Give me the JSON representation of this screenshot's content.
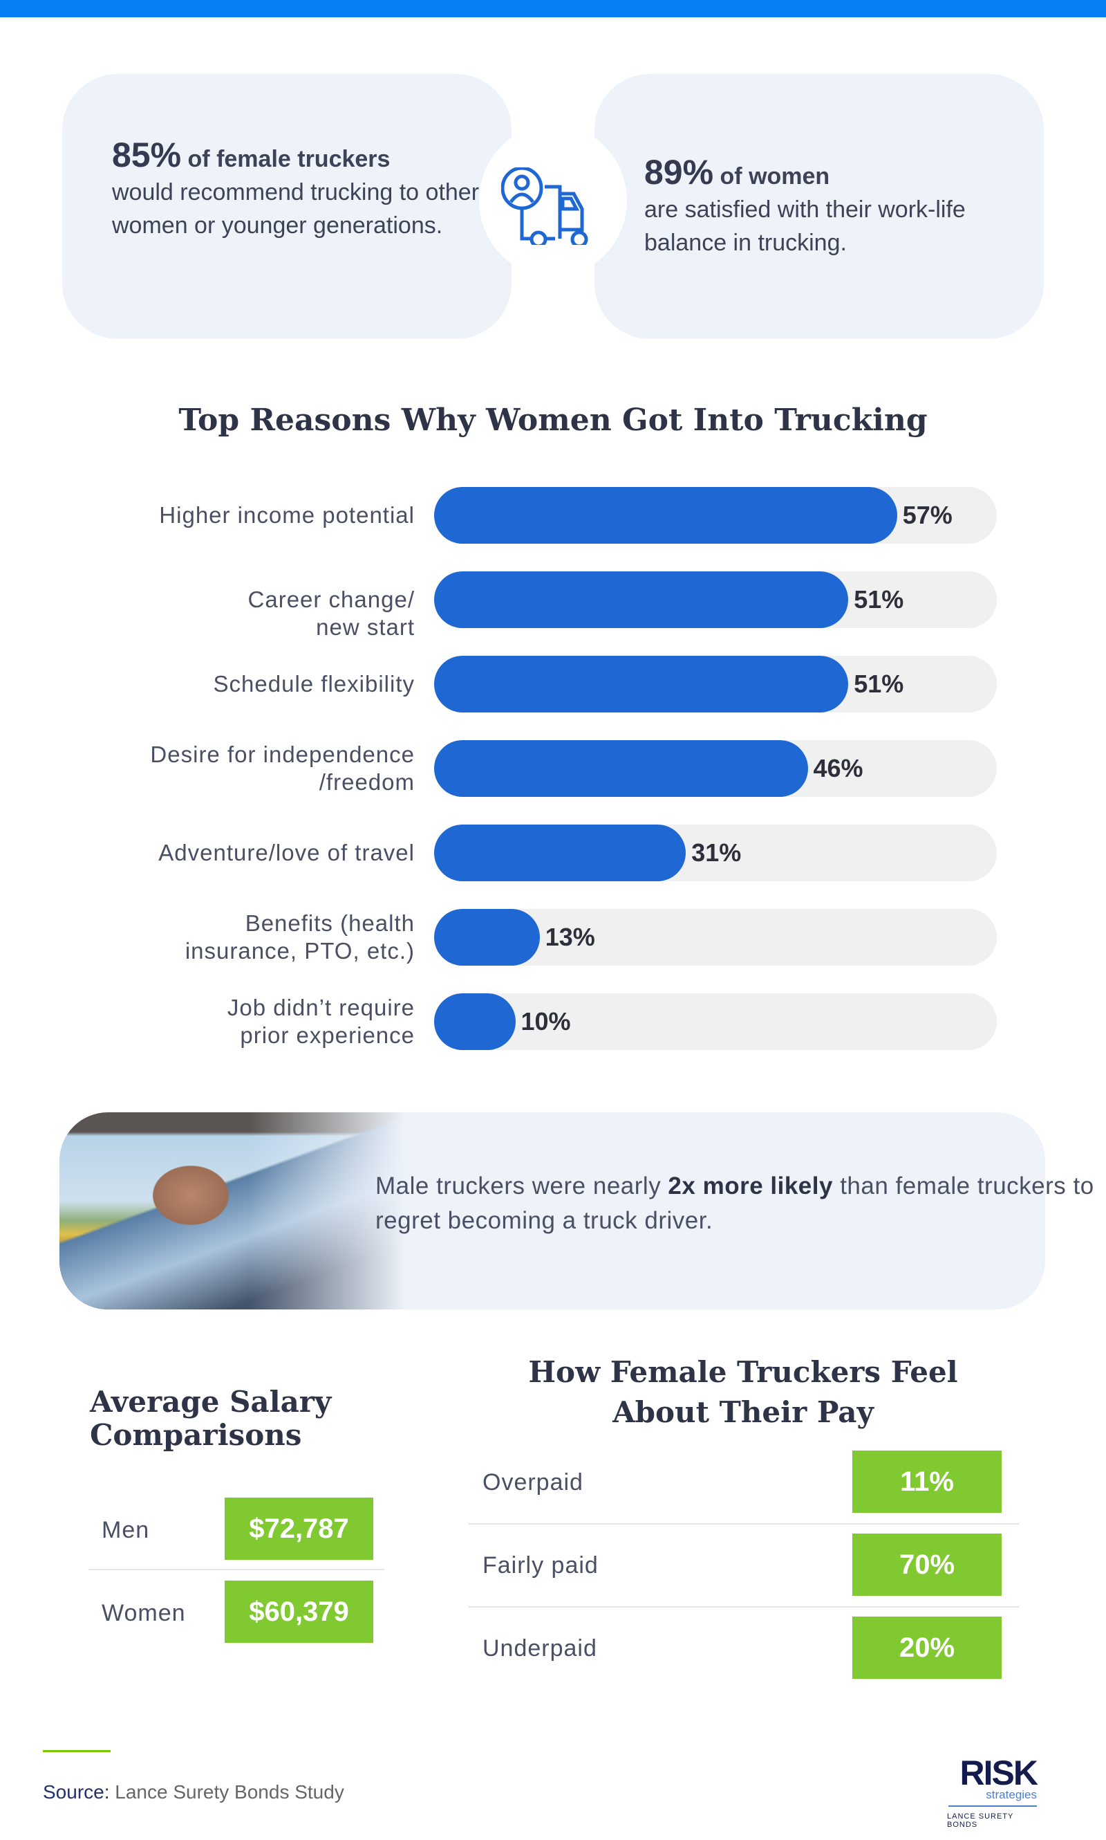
{
  "stats": [
    {
      "value": "85%",
      "lead": "of female truckers",
      "text": "would recommend trucking to other women or younger generations."
    },
    {
      "value": "89%",
      "lead": "of women",
      "text": "are satisfied with their work-life balance in trucking."
    }
  ],
  "icons": {
    "center": "truck-with-driver-icon"
  },
  "colors": {
    "accent": "#0880f5",
    "bar": "#1f67d2",
    "track": "#f0f0f0",
    "green": "#80c931",
    "card": "#eef3fa"
  },
  "reasons": {
    "title": "Top Reasons Why Women Got Into Trucking",
    "items": [
      {
        "label": "Higher income potential",
        "value": 57,
        "display": "57%"
      },
      {
        "label": "Career change/ new start",
        "value": 51,
        "display": "51%"
      },
      {
        "label": "Schedule flexibility",
        "value": 51,
        "display": "51%"
      },
      {
        "label": "Desire for independence /freedom",
        "value": 46,
        "display": "46%"
      },
      {
        "label": "Adventure/love of travel",
        "value": 31,
        "display": "31%"
      },
      {
        "label": "Benefits (health insurance, PTO, etc.)",
        "value": 13,
        "display": "13%"
      },
      {
        "label": "Job didn’t require prior experience",
        "value": 10,
        "display": "10%"
      }
    ]
  },
  "callout": {
    "pre": "Male truckers were nearly ",
    "bold": "2x more likely",
    "post": " than female truckers to regret becoming a truck driver."
  },
  "salary": {
    "title": "Average Salary Comparisons",
    "rows": [
      {
        "label": "Men",
        "value": "$72,787"
      },
      {
        "label": "Women",
        "value": "$60,379"
      }
    ]
  },
  "pay": {
    "title": "How Female Truckers Feel About Their Pay",
    "rows": [
      {
        "label": "Overpaid",
        "value": "11%"
      },
      {
        "label": "Fairly paid",
        "value": "70%"
      },
      {
        "label": "Underpaid",
        "value": "20%"
      }
    ]
  },
  "footer": {
    "source_label": "Source:",
    "source": "Lance Surety Bonds Study",
    "logo": {
      "main": "RISK",
      "sub": "strategies",
      "tag": "LANCE SURETY BONDS"
    }
  }
}
